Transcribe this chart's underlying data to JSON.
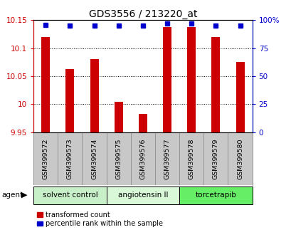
{
  "title": "GDS3556 / 213220_at",
  "samples": [
    "GSM399572",
    "GSM399573",
    "GSM399574",
    "GSM399575",
    "GSM399576",
    "GSM399577",
    "GSM399578",
    "GSM399579",
    "GSM399580"
  ],
  "red_values": [
    10.12,
    10.063,
    10.08,
    10.005,
    9.983,
    10.138,
    10.138,
    10.12,
    10.075
  ],
  "blue_values": [
    96,
    95,
    95,
    95,
    95,
    97,
    97,
    95,
    95
  ],
  "ylim_left": [
    9.95,
    10.15
  ],
  "ylim_right": [
    0,
    100
  ],
  "yticks_left": [
    9.95,
    10.0,
    10.05,
    10.1,
    10.15
  ],
  "yticks_right": [
    0,
    25,
    50,
    75,
    100
  ],
  "yticklabels_left": [
    "9.95",
    "10",
    "10.05",
    "10.1",
    "10.15"
  ],
  "yticklabels_right": [
    "0",
    "25",
    "50",
    "75",
    "100%"
  ],
  "groups": [
    {
      "label": "solvent control",
      "indices": [
        0,
        1,
        2
      ],
      "color": "#c8f0c8"
    },
    {
      "label": "angiotensin II",
      "indices": [
        3,
        4,
        5
      ],
      "color": "#d8f8d8"
    },
    {
      "label": "torcetrapib",
      "indices": [
        6,
        7,
        8
      ],
      "color": "#66ee66"
    }
  ],
  "bar_color": "#cc0000",
  "dot_color": "#0000cc",
  "sample_bg_color": "#c8c8c8",
  "legend_red_label": "transformed count",
  "legend_blue_label": "percentile rank within the sample",
  "agent_label": "agent",
  "bar_width": 0.35,
  "base_value": 9.95
}
